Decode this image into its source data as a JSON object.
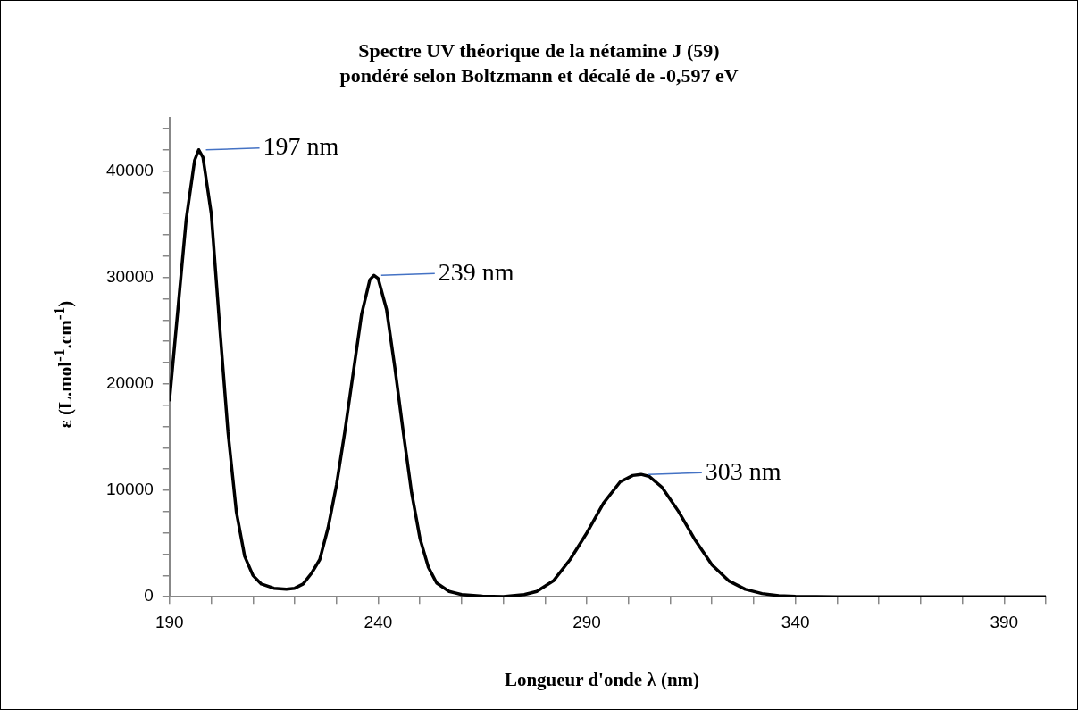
{
  "chart_data": {
    "type": "line",
    "title": "Spectre UV théorique de la nétamine J (59)\npondéré selon Boltzmann et décalé de  -0,597 eV",
    "xlabel": "Longueur d'onde λ (nm)",
    "ylabel": "ε (L.mol$^{-1}$.cm$^{-1}$)",
    "xlim": [
      190,
      400
    ],
    "xticks": [
      190,
      {
        "value": 200,
        "label": null
      },
      {
        "value": 210,
        "label": null
      },
      {
        "value": 220,
        "label": null
      },
      {
        "value": 230,
        "label": null
      },
      240,
      {
        "value": 250,
        "label": null
      },
      {
        "value": 260,
        "label": null
      },
      {
        "value": 270,
        "label": null
      },
      {
        "value": 280,
        "label": null
      },
      290,
      {
        "value": 300,
        "label": null
      },
      {
        "value": 310,
        "label": null
      },
      {
        "value": 320,
        "label": null
      },
      {
        "value": 330,
        "label": null
      },
      340,
      {
        "value": 350,
        "label": null
      },
      {
        "value": 360,
        "label": null
      },
      {
        "value": 370,
        "label": null
      },
      {
        "value": 380,
        "label": null
      },
      390,
      {
        "value": 400,
        "label": null
      }
    ],
    "ylim": [
      0,
      45000
    ],
    "yticks": [
      0,
      {
        "value": 2000,
        "label": null
      },
      {
        "value": 4000,
        "label": null
      },
      {
        "value": 6000,
        "label": null
      },
      {
        "value": 8000,
        "label": null
      },
      10000,
      {
        "value": 12000,
        "label": null
      },
      {
        "value": 14000,
        "label": null
      },
      {
        "value": 16000,
        "label": null
      },
      {
        "value": 18000,
        "label": null
      },
      20000,
      {
        "value": 22000,
        "label": null
      },
      {
        "value": 24000,
        "label": null
      },
      {
        "value": 26000,
        "label": null
      },
      {
        "value": 28000,
        "label": null
      },
      30000,
      {
        "value": 32000,
        "label": null
      },
      {
        "value": 34000,
        "label": null
      },
      {
        "value": 36000,
        "label": null
      },
      {
        "value": 38000,
        "label": null
      },
      40000,
      {
        "value": 42000,
        "label": null
      },
      {
        "value": 44000,
        "label": null
      }
    ],
    "grid": false,
    "legend": false,
    "marker": "none",
    "line_style": "solid",
    "series": [
      {
        "color": "#000000",
        "x": [
          190,
          192,
          194,
          196,
          197,
          198,
          200,
          202,
          204,
          206,
          208,
          210,
          212,
          215,
          218,
          220,
          222,
          224,
          226,
          228,
          230,
          232,
          234,
          236,
          238,
          239,
          240,
          242,
          244,
          246,
          248,
          250,
          252,
          254,
          257,
          260,
          265,
          270,
          275,
          278,
          282,
          286,
          290,
          294,
          298,
          301,
          303,
          305,
          308,
          312,
          316,
          320,
          324,
          328,
          332,
          336,
          340,
          350,
          360,
          380,
          400
        ],
        "values": [
          18500,
          27000,
          35500,
          41000,
          42000,
          41300,
          36000,
          25500,
          15500,
          8000,
          3800,
          2000,
          1200,
          800,
          700,
          800,
          1200,
          2200,
          3500,
          6500,
          10500,
          15500,
          21000,
          26500,
          29800,
          30200,
          29900,
          27000,
          21500,
          15500,
          9800,
          5500,
          2800,
          1300,
          500,
          200,
          50,
          20,
          200,
          500,
          1500,
          3500,
          6000,
          8800,
          10800,
          11400,
          11500,
          11300,
          10300,
          8000,
          5300,
          3000,
          1500,
          700,
          300,
          100,
          30,
          0,
          0,
          0,
          0
        ]
      }
    ],
    "annotations": [
      {
        "text": "197 nm",
        "x": 197,
        "y": 42000
      },
      {
        "text": "239 nm",
        "x": 239,
        "y": 30200
      },
      {
        "text": "303 nm",
        "x": 303,
        "y": 11500
      }
    ]
  }
}
